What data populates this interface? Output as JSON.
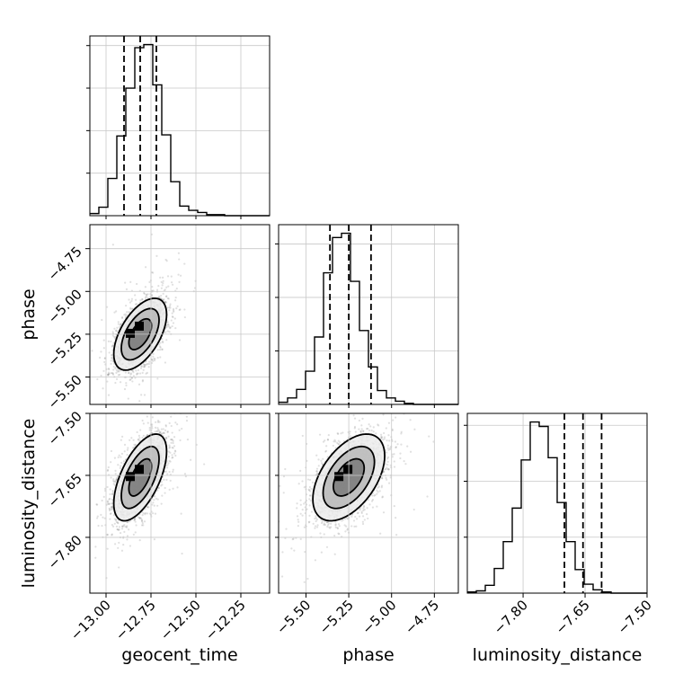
{
  "chart_data": {
    "type": "corner",
    "parameters": [
      "geocent_time",
      "phase",
      "luminosity_distance"
    ],
    "ranges": {
      "geocent_time": [
        -13.09,
        -12.09
      ],
      "phase": [
        -5.66,
        -4.61
      ],
      "luminosity_distance": [
        -7.935,
        -7.5
      ]
    },
    "ticks": {
      "geocent_time": [
        "−13.00",
        "−12.75",
        "−12.50",
        "−12.25"
      ],
      "phase": [
        "−5.50",
        "−5.25",
        "−5.00",
        "−4.75"
      ],
      "luminosity_distance": [
        "−7.80",
        "−7.65",
        "−7.50"
      ]
    },
    "tick_values": {
      "geocent_time": [
        -13.0,
        -12.75,
        -12.5,
        -12.25
      ],
      "phase": [
        -5.5,
        -5.25,
        -5.0,
        -4.75
      ],
      "luminosity_distance": [
        -7.8,
        -7.65,
        -7.5
      ]
    },
    "quantiles": {
      "geocent_time": [
        -12.9,
        -12.81,
        -12.72
      ],
      "phase": [
        -5.36,
        -5.25,
        -5.12
      ],
      "luminosity_distance": [
        -7.7,
        -7.655,
        -7.61
      ]
    },
    "histograms": {
      "geocent_time": {
        "bins_start": -13.09,
        "bin_width": 0.05,
        "counts": [
          2,
          8,
          35,
          75,
          120,
          158,
          161,
          123,
          76,
          32,
          9,
          5,
          3,
          1,
          1,
          0,
          0,
          0,
          0,
          0
        ]
      },
      "phase": {
        "bins_start": -5.66,
        "bin_width": 0.0525,
        "counts": [
          2,
          6,
          14,
          31,
          63,
          123,
          156,
          160,
          115,
          69,
          35,
          13,
          6,
          3,
          1,
          0,
          0,
          0,
          0,
          0
        ]
      },
      "luminosity_distance": {
        "bins_start": -7.935,
        "bin_width": 0.02175,
        "counts": [
          1,
          2,
          7,
          22,
          46,
          76,
          119,
          153,
          149,
          121,
          81,
          46,
          21,
          8,
          3,
          1,
          0,
          0,
          0,
          0
        ]
      }
    },
    "correlations": {
      "phase|geocent_time": 0.55,
      "luminosity_distance|geocent_time": 0.6,
      "luminosity_distance|phase": 0.5
    },
    "sigmas": {
      "geocent_time": 0.07,
      "phase": 0.1,
      "luminosity_distance": 0.05
    },
    "grid": true,
    "title": ""
  }
}
